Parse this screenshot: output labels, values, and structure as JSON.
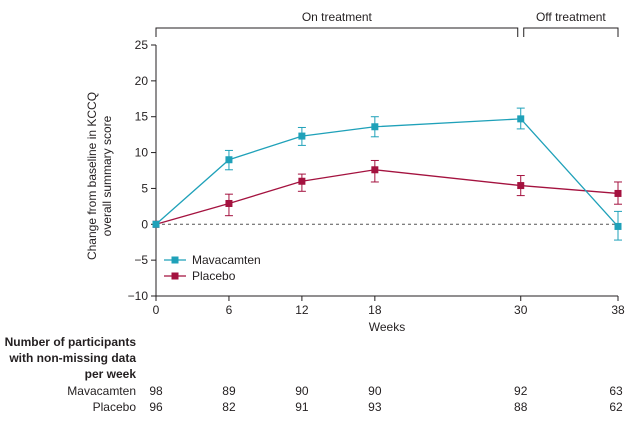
{
  "panel_letter": "",
  "chart_data": {
    "type": "line",
    "x": [
      0,
      6,
      12,
      18,
      30,
      38
    ],
    "x_ticks": [
      0,
      6,
      12,
      18,
      30,
      38
    ],
    "xlim": [
      0,
      38
    ],
    "y_ticks": [
      25,
      20,
      15,
      10,
      5,
      0,
      -5,
      -10
    ],
    "ylim": [
      -10,
      25
    ],
    "xlabel": "Weeks",
    "ylabel_line1": "Change from baseline in KCCQ",
    "ylabel_line2": "overall summary score",
    "reference_line_y": 0,
    "periods": [
      {
        "label": "On treatment",
        "from": 0,
        "to": 30
      },
      {
        "label": "Off treatment",
        "from": 30,
        "to": 38
      }
    ],
    "legend_position": "bottom-left",
    "series": [
      {
        "name": "Mavacamten",
        "color": "#1fa1b9",
        "marker": "square",
        "values": [
          0,
          9.0,
          12.3,
          13.6,
          14.7,
          -0.3
        ],
        "error_low": [
          0,
          7.6,
          11.0,
          12.2,
          13.3,
          -2.2
        ],
        "error_high": [
          0,
          10.3,
          13.5,
          15.0,
          16.2,
          1.8
        ]
      },
      {
        "name": "Placebo",
        "color": "#a4123f",
        "marker": "square",
        "values": [
          0,
          2.9,
          6.0,
          7.6,
          5.4,
          4.3
        ],
        "error_low": [
          0,
          1.2,
          4.6,
          5.9,
          4.0,
          2.8
        ],
        "error_high": [
          0,
          4.2,
          7.0,
          8.9,
          6.8,
          5.9
        ]
      }
    ]
  },
  "participants_table": {
    "header_lines": [
      "Number of participants",
      "with non-missing data",
      "per week"
    ],
    "rows": [
      {
        "label": "Mavacamten",
        "values": [
          "98",
          "89",
          "90",
          "90",
          "92",
          "63"
        ]
      },
      {
        "label": "Placebo",
        "values": [
          "96",
          "82",
          "91",
          "93",
          "88",
          "62"
        ]
      }
    ]
  }
}
